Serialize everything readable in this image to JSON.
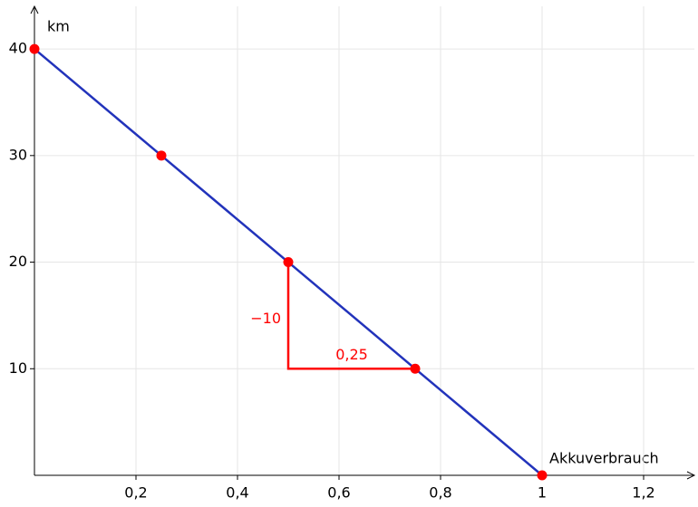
{
  "chart_data": {
    "type": "line",
    "x_label": "Akkuverbrauch",
    "y_label": "km",
    "x": [
      0,
      0.25,
      0.5,
      0.75,
      1
    ],
    "series": [
      {
        "values": [
          40,
          30,
          20,
          10,
          0
        ],
        "color": "#2233bb",
        "marker_color": "#ff0000"
      }
    ],
    "xlim": [
      0,
      1.3
    ],
    "ylim": [
      0,
      44
    ],
    "xticks": [
      {
        "value": 0.2,
        "label": "0,2"
      },
      {
        "value": 0.4,
        "label": "0,4"
      },
      {
        "value": 0.6,
        "label": "0,6"
      },
      {
        "value": 0.8,
        "label": "0,8"
      },
      1,
      {
        "value": 1.2,
        "label": "1,2"
      }
    ],
    "yticks": [
      10,
      20,
      30,
      40
    ],
    "grid": true,
    "annotations": [
      {
        "text": "−10",
        "color": "#ff0000"
      },
      {
        "text": "0,25",
        "color": "#ff0000"
      }
    ]
  }
}
